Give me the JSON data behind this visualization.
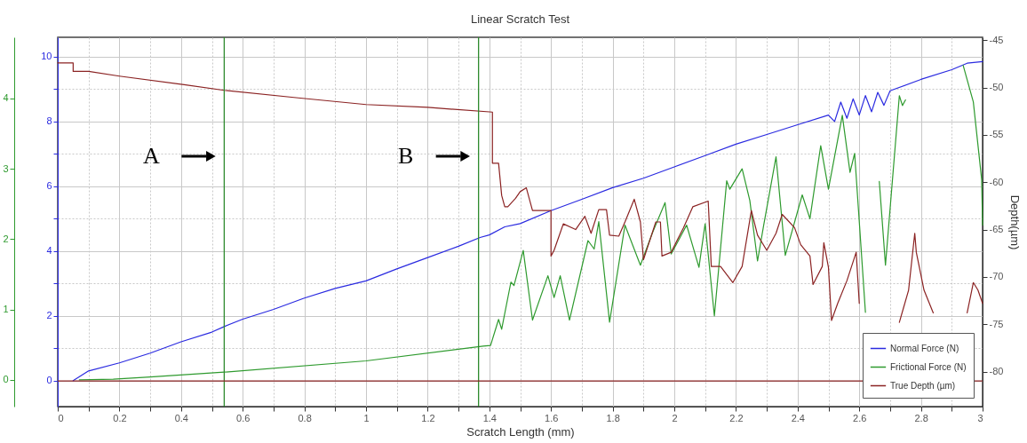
{
  "chart_data": {
    "type": "line",
    "title": "Linear Scratch Test",
    "xlabel": "Scratch Length (mm)",
    "y2label": "Depth(µm)",
    "xlim": [
      0,
      3
    ],
    "xticks": [
      0,
      {
        "value": 0.1,
        "label": null
      },
      0.2,
      {
        "value": 0.3,
        "label": null
      },
      0.4,
      {
        "value": 0.5,
        "label": null
      },
      0.6,
      {
        "value": 0.7,
        "label": null
      },
      0.8,
      {
        "value": 0.9,
        "label": null
      },
      1,
      {
        "value": 1.1,
        "label": null
      },
      1.2,
      {
        "value": 1.3,
        "label": null
      },
      1.4,
      {
        "value": 1.5,
        "label": null
      },
      1.6,
      {
        "value": 1.7,
        "label": null
      },
      1.8,
      {
        "value": 1.9,
        "label": null
      },
      2,
      {
        "value": 2.1,
        "label": null
      },
      2.2,
      {
        "value": 2.3,
        "label": null
      },
      2.4,
      {
        "value": 2.5,
        "label": null
      },
      2.6,
      {
        "value": 2.7,
        "label": null
      },
      2.8,
      {
        "value": 2.9,
        "label": null
      },
      3
    ],
    "ylim": [
      -0.8,
      10.6
    ],
    "yticks": [
      0,
      {
        "value": 1,
        "label": null
      },
      2,
      {
        "value": 3,
        "label": null
      },
      4,
      {
        "value": 5,
        "label": null
      },
      6,
      {
        "value": 7,
        "label": null
      },
      8,
      {
        "value": 9,
        "label": null
      },
      10
    ],
    "y2lim": [
      -83.7,
      -44.7
    ],
    "y2ticks": [
      -80,
      -75,
      -70,
      -65,
      -60,
      -55,
      -50,
      -45
    ],
    "y3lim": [
      -0.38,
      4.87
    ],
    "y3ticks": [
      0,
      1,
      2,
      3,
      4
    ],
    "grid": true,
    "legend": "bottom right",
    "series": [
      {
        "name": "Normal Force (N)",
        "color": "#2a2ae0",
        "x": [
          0.05,
          0.1,
          0.2,
          0.3,
          0.4,
          0.5,
          0.54,
          0.6,
          0.7,
          0.8,
          0.9,
          1.0,
          1.1,
          1.2,
          1.3,
          1.37,
          1.4,
          1.45,
          1.5,
          1.6,
          1.7,
          1.8,
          1.9,
          2.0,
          2.1,
          2.2,
          2.3,
          2.4,
          2.5,
          2.52,
          2.54,
          2.56,
          2.58,
          2.6,
          2.62,
          2.64,
          2.66,
          2.68,
          2.7,
          2.8,
          2.9,
          2.95,
          3.0
        ],
        "values": [
          0,
          0.3,
          0.55,
          0.85,
          1.2,
          1.5,
          1.67,
          1.9,
          2.2,
          2.55,
          2.85,
          3.08,
          3.45,
          3.8,
          4.15,
          4.42,
          4.5,
          4.75,
          4.85,
          5.25,
          5.6,
          5.96,
          6.25,
          6.6,
          6.95,
          7.3,
          7.6,
          7.9,
          8.2,
          8.0,
          8.6,
          8.1,
          8.7,
          8.2,
          8.8,
          8.3,
          8.9,
          8.5,
          8.95,
          9.3,
          9.6,
          9.8,
          9.85
        ]
      },
      {
        "name": "Frictional Force (N)",
        "color": "#2e9a2e",
        "axis": "y3",
        "x": [
          0.07,
          0.18,
          0.3,
          0.54,
          1.0,
          1.38,
          1.404,
          1.43,
          1.44,
          1.47,
          1.48,
          1.51,
          1.54,
          1.59,
          1.61,
          1.63,
          1.66,
          1.72,
          1.74,
          1.755,
          1.79,
          1.84,
          1.89,
          1.93,
          1.97,
          1.99,
          2.04,
          2.08,
          2.1,
          2.13,
          2.17,
          2.18,
          2.22,
          2.245,
          2.27,
          2.29,
          2.33,
          2.36,
          2.415,
          2.44,
          2.475,
          2.5,
          2.545,
          2.57,
          2.585,
          2.62,
          2.64,
          2.665,
          2.685,
          2.73,
          2.74,
          2.75,
          2.84,
          2.937,
          2.97,
          2.997,
          3.0
        ],
        "values": [
          0,
          0.01,
          0.04,
          0.11,
          0.27,
          0.48,
          0.49,
          0.86,
          0.72,
          1.39,
          1.34,
          1.84,
          0.85,
          1.48,
          1.17,
          1.48,
          0.85,
          1.98,
          1.86,
          2.25,
          0.82,
          2.2,
          1.63,
          2.1,
          2.52,
          1.79,
          2.2,
          1.6,
          2.22,
          0.91,
          2.83,
          2.71,
          3.0,
          2.55,
          1.69,
          2.2,
          3.17,
          1.77,
          2.63,
          2.29,
          3.33,
          2.71,
          3.76,
          2.95,
          3.22,
          0.96,
          null,
          2.82,
          1.63,
          4.04,
          3.9,
          3.98,
          null,
          4.47,
          3.95,
          2.85,
          2.2
        ]
      },
      {
        "name": "True Depth (µm)",
        "color": "#8b2323",
        "axis": "y2",
        "x": [
          0,
          0.05,
          0.05,
          0.1,
          0.2,
          0.41,
          0.54,
          0.78,
          1.0,
          1.2,
          1.41,
          1.41,
          1.43,
          1.44,
          1.45,
          1.46,
          1.485,
          1.5,
          1.52,
          1.54,
          1.6,
          1.6,
          1.61,
          1.64,
          1.68,
          1.71,
          1.73,
          1.755,
          1.78,
          1.79,
          1.82,
          1.84,
          1.87,
          1.89,
          1.9,
          1.94,
          1.955,
          1.96,
          1.99,
          2.03,
          2.06,
          2.11,
          2.12,
          2.15,
          2.19,
          2.22,
          2.25,
          2.27,
          2.3,
          2.33,
          2.35,
          2.39,
          2.41,
          2.44,
          2.45,
          2.48,
          2.485,
          2.5,
          2.51,
          2.53,
          2.56,
          2.59,
          2.6,
          2.66,
          2.73,
          2.76,
          2.78,
          2.785,
          2.81,
          2.84,
          2.9,
          2.95,
          2.97,
          2.985,
          3.0
        ],
        "values": [
          -47.4,
          -47.4,
          -48.3,
          -48.3,
          -48.8,
          -49.7,
          -50.3,
          -51.1,
          -51.8,
          -52.1,
          -52.6,
          -58.0,
          -58.0,
          -61.4,
          -62.6,
          -62.6,
          -61.7,
          -61.0,
          -60.6,
          -63.0,
          -63.0,
          -67.8,
          -67.2,
          -64.4,
          -65.0,
          -63.6,
          -65.4,
          -62.9,
          -62.9,
          -65.6,
          -65.7,
          -64.2,
          -61.8,
          -64.2,
          -68.2,
          -64.2,
          -64.2,
          -67.8,
          -67.4,
          -64.8,
          -62.6,
          -62.0,
          -68.9,
          -68.9,
          -70.6,
          -68.9,
          -63.0,
          -65.6,
          -67.2,
          -65.4,
          -63.4,
          -64.8,
          -66.6,
          -67.8,
          -70.8,
          -68.9,
          -66.4,
          -69.0,
          -74.6,
          -72.8,
          -70.4,
          -67.4,
          -72.8,
          null,
          -74.8,
          -71.4,
          -65.4,
          -67.4,
          -71.4,
          -73.8,
          null,
          -73.8,
          -70.6,
          -71.4,
          -72.8
        ]
      }
    ],
    "ref_lines": [
      {
        "axis": "x",
        "value": 0.54,
        "color": "#2e8b2e"
      },
      {
        "axis": "x",
        "value": 1.365,
        "color": "#2e8b2e"
      },
      {
        "axis": "y2",
        "value": -81,
        "color": "#8b2323"
      }
    ],
    "annotations": [
      "A",
      "B"
    ]
  }
}
